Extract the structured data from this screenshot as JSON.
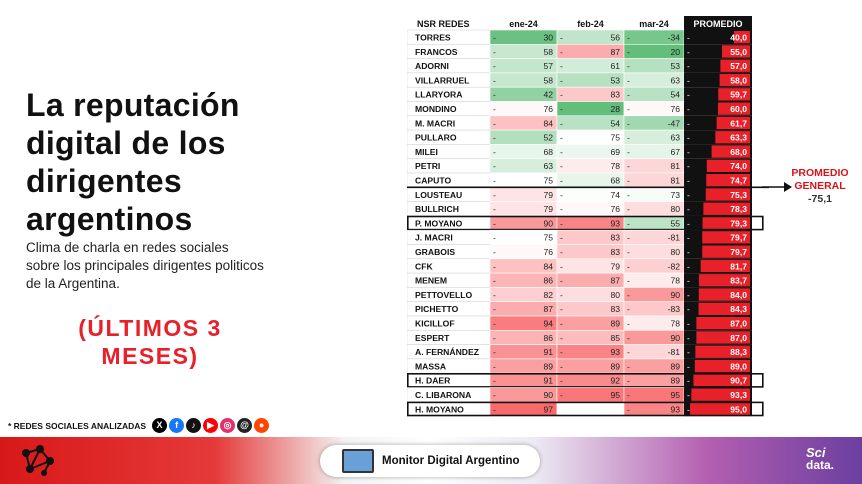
{
  "title": "La reputación digital de los dirigentes argentinos",
  "subtitle": "Clima de charla en redes sociales sobre los principales dirigentes politicos de la Argentina.",
  "period": "(ÚLTIMOS 3 MESES)",
  "networks": {
    "label": "* REDES SOCIALES ANALIZADAS",
    "icons": [
      "x-icon",
      "facebook-icon",
      "tiktok-icon",
      "youtube-icon",
      "instagram-icon",
      "threads-icon",
      "reddit-icon"
    ]
  },
  "average_note": {
    "line1": "PROMEDIO",
    "line2": "GENERAL",
    "value": "-75,1"
  },
  "footer": {
    "brand": "Monitor Digital Argentino",
    "sci_line1": "Sci",
    "sci_line2": "data."
  },
  "colors": {
    "red": "#e8202a",
    "green": "#63be7b",
    "header_dark": "#111111"
  },
  "chart_data": {
    "type": "table",
    "columns": [
      "NSR REDES",
      "ene-24",
      "feb-24",
      "mar-24",
      "PROMEDIO"
    ],
    "rows": [
      {
        "name": "TORRES",
        "values": [
          "30",
          "56",
          "-34"
        ],
        "avg": "40,0"
      },
      {
        "name": "FRANCOS",
        "values": [
          "58",
          "87",
          "20"
        ],
        "avg": "55,0"
      },
      {
        "name": "ADORNI",
        "values": [
          "57",
          "61",
          "53"
        ],
        "avg": "57,0"
      },
      {
        "name": "VILLARRUEL",
        "values": [
          "58",
          "53",
          "63"
        ],
        "avg": "58,0"
      },
      {
        "name": "LLARYORA",
        "values": [
          "42",
          "83",
          "54"
        ],
        "avg": "59,7"
      },
      {
        "name": "MONDINO",
        "values": [
          "76",
          "28",
          "76"
        ],
        "avg": "60,0"
      },
      {
        "name": "M. MACRI",
        "values": [
          "84",
          "54",
          "-47"
        ],
        "avg": "61,7"
      },
      {
        "name": "PULLARO",
        "values": [
          "52",
          "75",
          "63"
        ],
        "avg": "63,3"
      },
      {
        "name": "MILEI",
        "values": [
          "68",
          "69",
          "67"
        ],
        "avg": "68,0"
      },
      {
        "name": "PETRI",
        "values": [
          "63",
          "78",
          "81"
        ],
        "avg": "74,0"
      },
      {
        "name": "CAPUTO",
        "values": [
          "75",
          "68",
          "81"
        ],
        "avg": "74,7"
      },
      {
        "name": "LOUSTEAU",
        "values": [
          "79",
          "74",
          "73"
        ],
        "avg": "75,3"
      },
      {
        "name": "BULLRICH",
        "values": [
          "79",
          "76",
          "80"
        ],
        "avg": "78,3"
      },
      {
        "name": "P. MOYANO",
        "values": [
          "90",
          "93",
          "55"
        ],
        "avg": "79,3",
        "boxed": true
      },
      {
        "name": "J. MACRI",
        "values": [
          "75",
          "83",
          "-81"
        ],
        "avg": "79,7"
      },
      {
        "name": "GRABOIS",
        "values": [
          "76",
          "83",
          "80"
        ],
        "avg": "79,7"
      },
      {
        "name": "CFK",
        "values": [
          "84",
          "79",
          "-82"
        ],
        "avg": "81,7"
      },
      {
        "name": "MENEM",
        "values": [
          "86",
          "87",
          "78"
        ],
        "avg": "83,7"
      },
      {
        "name": "PETTOVELLO",
        "values": [
          "82",
          "80",
          "90"
        ],
        "avg": "84,0"
      },
      {
        "name": "PICHETTO",
        "values": [
          "87",
          "83",
          "-83"
        ],
        "avg": "84,3"
      },
      {
        "name": "KICILLOF",
        "values": [
          "94",
          "89",
          "78"
        ],
        "avg": "87,0"
      },
      {
        "name": "ESPERT",
        "values": [
          "86",
          "85",
          "90"
        ],
        "avg": "87,0"
      },
      {
        "name": "A. FERNÁNDEZ",
        "values": [
          "91",
          "93",
          "-81"
        ],
        "avg": "88,3"
      },
      {
        "name": "MASSA",
        "values": [
          "89",
          "89",
          "89"
        ],
        "avg": "89,0"
      },
      {
        "name": "H. DAER",
        "values": [
          "91",
          "92",
          "89"
        ],
        "avg": "90,7",
        "boxed": true
      },
      {
        "name": "C. LIBARONA",
        "values": [
          "90",
          "95",
          "95"
        ],
        "avg": "93,3"
      },
      {
        "name": "H. MOYANO",
        "values": [
          "97",
          "",
          "93"
        ],
        "avg": "95,0",
        "boxed": true
      }
    ],
    "divider_after_row": 10
  }
}
